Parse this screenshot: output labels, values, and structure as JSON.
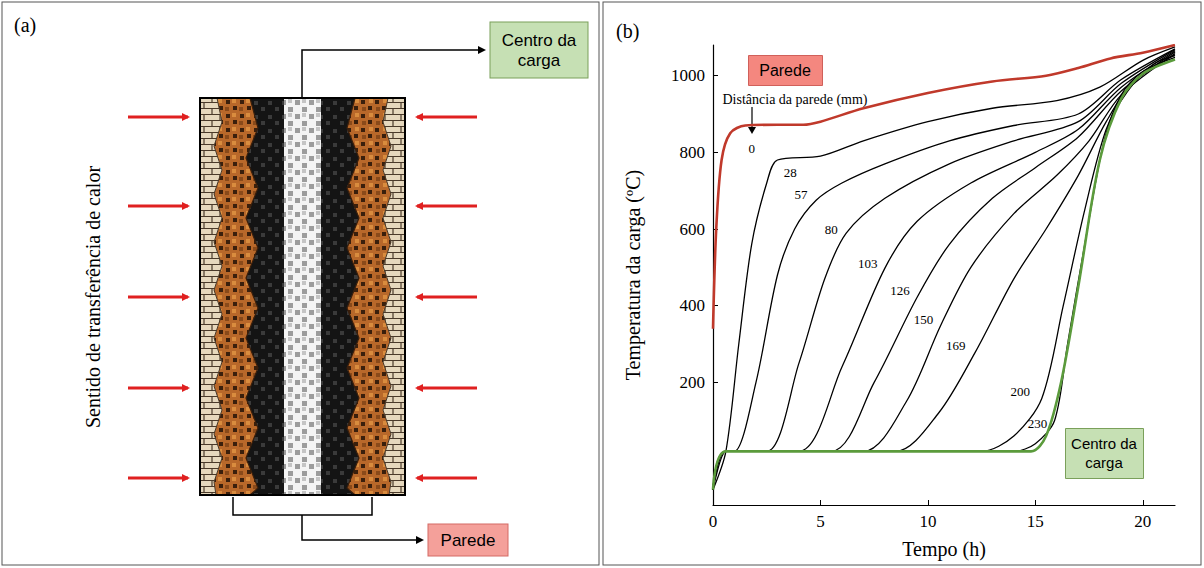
{
  "panel_a": {
    "letter": "(a)",
    "center_label": "Centro da carga",
    "wall_label": "Parede",
    "arrow_label": "Sentido de transferência de calor"
  },
  "chart_data": {
    "letter": "(b)",
    "type": "line",
    "x_label": "Tempo (h)",
    "y_label": "Temperatura da carga (ºC)",
    "xlim": [
      0,
      21.5
    ],
    "xticks": [
      0,
      5,
      10,
      15,
      20
    ],
    "ylim": [
      -120,
      1080
    ],
    "yticks": [
      200,
      400,
      600,
      800,
      1000
    ],
    "grid": false,
    "annotations": [
      "Parede",
      "Distância da parede (mm)"
    ],
    "series": [
      {
        "name": "0",
        "color": "#c0392b",
        "x": [
          0,
          0.15,
          0.4,
          0.8,
          1.5,
          3,
          4.2,
          5,
          7,
          10,
          13,
          15.5,
          17,
          18.5,
          20,
          21.5
        ],
        "values": [
          340,
          600,
          780,
          850,
          870,
          872,
          872,
          880,
          915,
          955,
          985,
          1000,
          1020,
          1045,
          1060,
          1080
        ]
      },
      {
        "name": "28",
        "color": "#000000",
        "x": [
          0,
          0.6,
          1.2,
          1.8,
          2.5,
          3,
          5,
          7,
          10,
          13,
          16,
          18,
          20,
          21.5
        ],
        "values": [
          -80,
          20,
          300,
          560,
          720,
          780,
          790,
          830,
          880,
          915,
          935,
          970,
          1040,
          1075
        ]
      },
      {
        "name": "57",
        "color": "#000000",
        "x": [
          0,
          0.6,
          1,
          2,
          3,
          3.8,
          4.8,
          6,
          8,
          11,
          14,
          17,
          19,
          21.5
        ],
        "values": [
          -80,
          20,
          20,
          200,
          480,
          600,
          675,
          720,
          770,
          830,
          870,
          900,
          990,
          1070
        ]
      },
      {
        "name": "80",
        "color": "#000000",
        "x": [
          0,
          0.6,
          2.5,
          4,
          5.2,
          6.2,
          8,
          11,
          14,
          17,
          19,
          21.5
        ],
        "values": [
          -80,
          20,
          20,
          250,
          470,
          589,
          680,
          770,
          830,
          880,
          980,
          1068
        ]
      },
      {
        "name": "103",
        "color": "#000000",
        "x": [
          0,
          0.6,
          4,
          6,
          8,
          9.5,
          12,
          15,
          17,
          19,
          21.5
        ],
        "values": [
          -80,
          20,
          20,
          240,
          498,
          620,
          720,
          800,
          860,
          970,
          1065
        ]
      },
      {
        "name": "126",
        "color": "#000000",
        "x": [
          0,
          0.6,
          5.5,
          7.5,
          9.5,
          11,
          13,
          15,
          17,
          19,
          21.5
        ],
        "values": [
          -80,
          20,
          20,
          200,
          422,
          560,
          680,
          760,
          840,
          960,
          1062
        ]
      },
      {
        "name": "150",
        "color": "#000000",
        "x": [
          0,
          0.6,
          7,
          9,
          10.6,
          12,
          14,
          16,
          17.5,
          19,
          21.5
        ],
        "values": [
          -80,
          20,
          20,
          150,
          349,
          500,
          640,
          740,
          830,
          950,
          1058
        ]
      },
      {
        "name": "169",
        "color": "#000000",
        "x": [
          0,
          0.6,
          8.5,
          10.5,
          12.2,
          14,
          15.5,
          17,
          18.3,
          19.5,
          21.5
        ],
        "values": [
          -80,
          20,
          20,
          120,
          278,
          470,
          600,
          740,
          880,
          980,
          1055
        ]
      },
      {
        "name": "200",
        "color": "#000000",
        "x": [
          0,
          0.6,
          12.5,
          14,
          15.3,
          16.3,
          17.3,
          18.3,
          19.3,
          20.5,
          21.5
        ],
        "values": [
          -80,
          20,
          20,
          60,
          158,
          400,
          650,
          860,
          960,
          1030,
          1052
        ]
      },
      {
        "name": "230",
        "color": "#000000",
        "x": [
          0,
          0.6,
          14,
          15,
          15.9,
          16.5,
          17.3,
          18.2,
          19,
          20,
          21.5
        ],
        "values": [
          -80,
          20,
          20,
          40,
          101,
          300,
          560,
          830,
          950,
          1010,
          1048
        ]
      },
      {
        "name": "Centro da carga",
        "color": "#5b9b3c",
        "x": [
          0,
          0.6,
          14.8,
          15.5,
          16.2,
          17,
          18,
          19,
          20,
          21.5
        ],
        "values": [
          -80,
          20,
          20,
          60,
          200,
          450,
          780,
          940,
          1005,
          1042
        ]
      }
    ]
  }
}
